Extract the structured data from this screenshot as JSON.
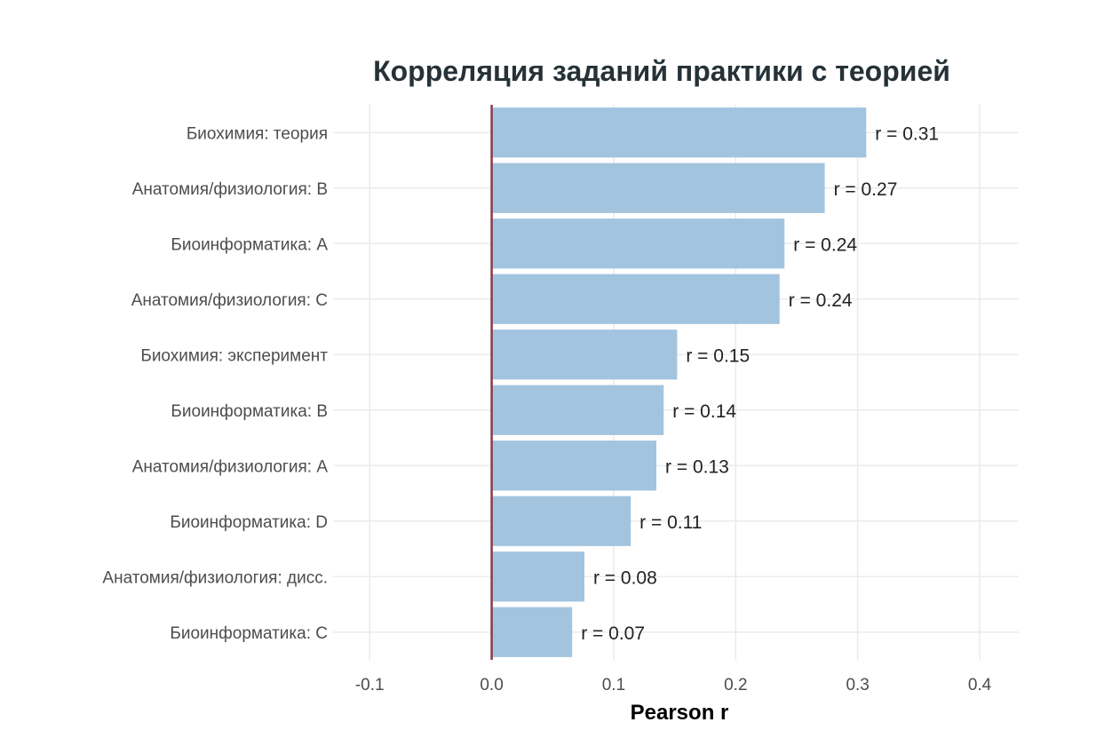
{
  "chart_data": {
    "type": "bar",
    "orientation": "horizontal",
    "title": "Корреляция заданий практики с теорией",
    "xlabel": "Pearson r",
    "ylabel": "",
    "xlim": [
      -0.13,
      0.432
    ],
    "xticks": [
      -0.1,
      0.0,
      0.1,
      0.2,
      0.3,
      0.4
    ],
    "xtick_labels": [
      "-0.1",
      "0.0",
      "0.1",
      "0.2",
      "0.3",
      "0.4"
    ],
    "grid": true,
    "reference_line": 0,
    "categories": [
      "Биохимия: теория",
      "Анатомия/физиология: B",
      "Биоинформатика: A",
      "Анатомия/физиология: C",
      "Биохимия: эксперимент",
      "Биоинформатика: B",
      "Анатомия/физиология: A",
      "Биоинформатика: D",
      "Анатомия/физиология: дисс.",
      "Биоинформатика: C"
    ],
    "values": [
      0.307,
      0.273,
      0.24,
      0.236,
      0.152,
      0.141,
      0.135,
      0.114,
      0.076,
      0.066
    ],
    "data_labels": [
      "r = 0.31",
      "r = 0.27",
      "r = 0.24",
      "r = 0.24",
      "r = 0.15",
      "r = 0.14",
      "r = 0.13",
      "r = 0.11",
      "r = 0.08",
      "r = 0.07"
    ],
    "colors": {
      "bar": "#a3c4df",
      "reference_line": "#8b3a4a",
      "grid": "#ebebeb",
      "title": "#263238"
    }
  }
}
